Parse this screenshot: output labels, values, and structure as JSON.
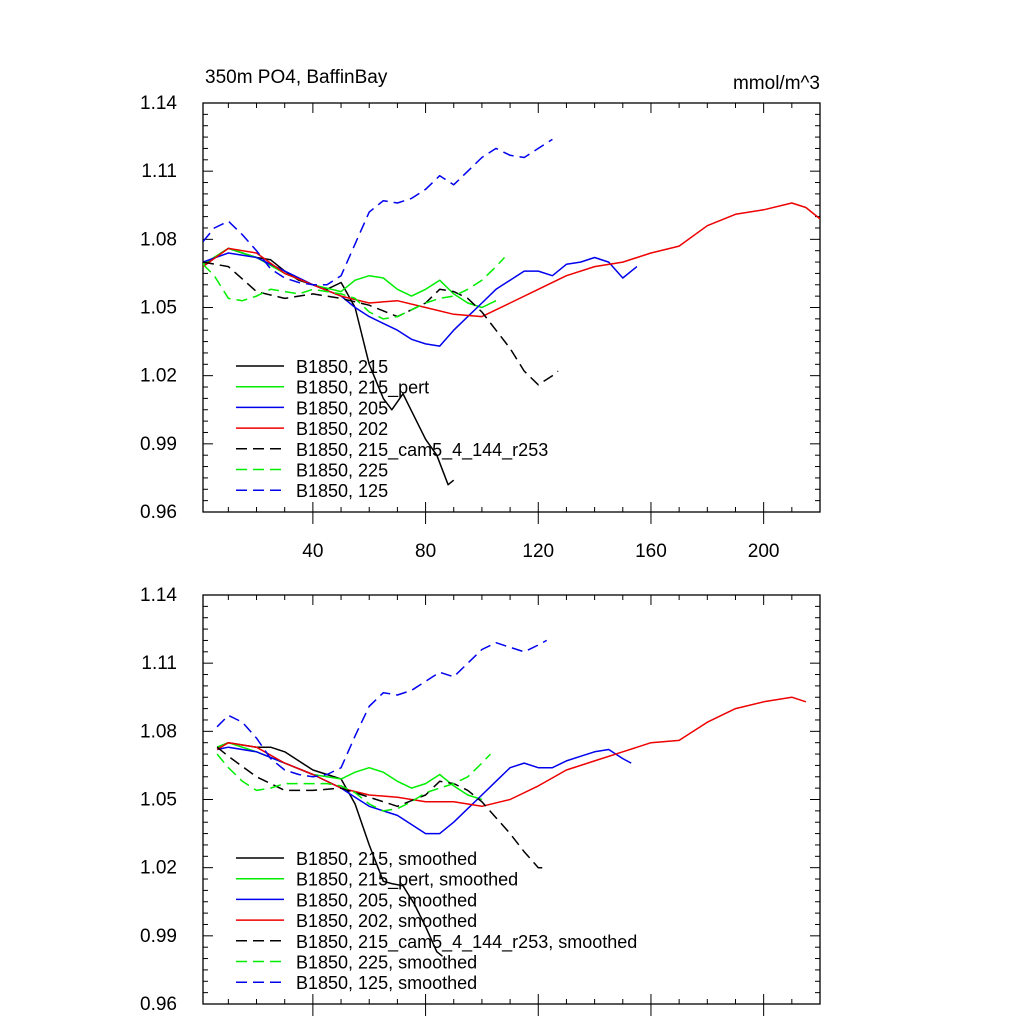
{
  "chart_data": [
    {
      "type": "line",
      "title": "350m PO4, BaffinBay",
      "units": "mmol/m^3",
      "xlim": [
        1,
        220
      ],
      "ylim": [
        0.96,
        1.14
      ],
      "xticks": [
        40,
        80,
        120,
        160,
        200
      ],
      "yticks": [
        0.96,
        0.99,
        1.02,
        1.05,
        1.08,
        1.11,
        1.14
      ],
      "ytick_labels": [
        "0.96",
        "0.99",
        "1.02",
        "1.05",
        "1.08",
        "1.11",
        "1.14"
      ],
      "xtick_labels": [
        "40",
        "80",
        "120",
        "160",
        "200"
      ],
      "legend_position": "bottom-left",
      "series": [
        {
          "name": "B1850, 215",
          "color": "#000000",
          "dashed": false,
          "x": [
            1,
            5,
            10,
            15,
            20,
            25,
            30,
            35,
            40,
            45,
            50,
            55,
            60,
            65,
            68,
            72,
            76,
            80,
            84,
            88,
            90
          ],
          "y": [
            1.068,
            1.072,
            1.076,
            1.074,
            1.072,
            1.071,
            1.066,
            1.062,
            1.06,
            1.058,
            1.061,
            1.05,
            1.025,
            1.01,
            1.005,
            1.012,
            1.002,
            0.992,
            0.985,
            0.972,
            0.974
          ]
        },
        {
          "name": "B1850, 215_pert",
          "color": "#00ee00",
          "dashed": false,
          "x": [
            1,
            10,
            20,
            30,
            40,
            50,
            55,
            60,
            65,
            70,
            75,
            80,
            85,
            90,
            95,
            100,
            105
          ],
          "y": [
            1.069,
            1.076,
            1.072,
            1.065,
            1.06,
            1.057,
            1.062,
            1.064,
            1.063,
            1.058,
            1.055,
            1.058,
            1.062,
            1.056,
            1.052,
            1.05,
            1.053
          ]
        },
        {
          "name": "B1850, 205",
          "color": "#0000ee",
          "dashed": false,
          "x": [
            1,
            10,
            20,
            30,
            40,
            50,
            55,
            60,
            65,
            70,
            75,
            80,
            85,
            90,
            95,
            100,
            105,
            110,
            115,
            120,
            125,
            130,
            135,
            140,
            145,
            150,
            155
          ],
          "y": [
            1.07,
            1.074,
            1.072,
            1.066,
            1.06,
            1.055,
            1.05,
            1.046,
            1.043,
            1.04,
            1.036,
            1.034,
            1.033,
            1.04,
            1.046,
            1.052,
            1.058,
            1.062,
            1.066,
            1.066,
            1.064,
            1.069,
            1.07,
            1.072,
            1.07,
            1.063,
            1.068
          ]
        },
        {
          "name": "B1850, 202",
          "color": "#ee0000",
          "dashed": false,
          "x": [
            1,
            10,
            20,
            30,
            40,
            50,
            60,
            70,
            80,
            90,
            100,
            110,
            120,
            130,
            140,
            150,
            160,
            170,
            180,
            190,
            200,
            210,
            215,
            220
          ],
          "y": [
            1.068,
            1.076,
            1.074,
            1.065,
            1.06,
            1.055,
            1.052,
            1.053,
            1.05,
            1.047,
            1.046,
            1.052,
            1.058,
            1.064,
            1.068,
            1.07,
            1.074,
            1.077,
            1.086,
            1.091,
            1.093,
            1.096,
            1.094,
            1.089
          ]
        },
        {
          "name": "B1850, 215_cam5_4_144_r253",
          "color": "#000000",
          "dashed": true,
          "x": [
            1,
            10,
            20,
            30,
            40,
            50,
            60,
            70,
            80,
            85,
            90,
            95,
            100,
            105,
            110,
            115,
            120,
            125,
            127
          ],
          "y": [
            1.07,
            1.068,
            1.057,
            1.054,
            1.056,
            1.054,
            1.051,
            1.046,
            1.052,
            1.058,
            1.057,
            1.054,
            1.048,
            1.04,
            1.032,
            1.022,
            1.016,
            1.02,
            1.022
          ]
        },
        {
          "name": "B1850, 225",
          "color": "#00ee00",
          "dashed": true,
          "x": [
            1,
            5,
            10,
            15,
            20,
            25,
            30,
            35,
            40,
            45,
            50,
            55,
            60,
            65,
            70,
            75,
            80,
            85,
            90,
            95,
            100,
            105,
            108
          ],
          "y": [
            1.069,
            1.064,
            1.054,
            1.053,
            1.055,
            1.058,
            1.057,
            1.056,
            1.058,
            1.057,
            1.056,
            1.054,
            1.048,
            1.045,
            1.046,
            1.049,
            1.052,
            1.054,
            1.055,
            1.058,
            1.062,
            1.068,
            1.072
          ]
        },
        {
          "name": "B1850, 125",
          "color": "#0000ee",
          "dashed": true,
          "x": [
            1,
            5,
            10,
            15,
            20,
            25,
            30,
            35,
            40,
            45,
            50,
            55,
            60,
            65,
            70,
            75,
            80,
            85,
            90,
            95,
            100,
            105,
            110,
            115,
            120,
            125
          ],
          "y": [
            1.079,
            1.085,
            1.088,
            1.082,
            1.075,
            1.067,
            1.063,
            1.061,
            1.06,
            1.06,
            1.064,
            1.078,
            1.092,
            1.097,
            1.096,
            1.098,
            1.102,
            1.108,
            1.104,
            1.11,
            1.116,
            1.12,
            1.117,
            1.116,
            1.12,
            1.124
          ]
        }
      ]
    },
    {
      "type": "line",
      "title": "",
      "xlim": [
        1,
        220
      ],
      "ylim": [
        0.96,
        1.14
      ],
      "xticks": [
        40,
        80,
        120,
        160,
        200
      ],
      "yticks": [
        0.96,
        0.99,
        1.02,
        1.05,
        1.08,
        1.11,
        1.14
      ],
      "ytick_labels": [
        "0.96",
        "0.99",
        "1.02",
        "1.05",
        "1.08",
        "1.11",
        "1.14"
      ],
      "legend_position": "bottom-left",
      "series": [
        {
          "name": "B1850, 215, smoothed",
          "color": "#000000",
          "dashed": false,
          "x": [
            6,
            10,
            15,
            20,
            25,
            30,
            35,
            40,
            45,
            50,
            55,
            60,
            65,
            68,
            72,
            76,
            80,
            84,
            86
          ],
          "y": [
            1.073,
            1.075,
            1.074,
            1.073,
            1.073,
            1.071,
            1.067,
            1.063,
            1.061,
            1.059,
            1.048,
            1.03,
            1.014,
            1.013,
            1.012,
            1.004,
            0.994,
            0.983,
            0.981
          ]
        },
        {
          "name": "B1850, 215_pert, smoothed",
          "color": "#00ee00",
          "dashed": false,
          "x": [
            6,
            10,
            20,
            30,
            40,
            50,
            55,
            60,
            65,
            70,
            75,
            80,
            85,
            90,
            95,
            100
          ],
          "y": [
            1.073,
            1.075,
            1.071,
            1.066,
            1.061,
            1.059,
            1.062,
            1.064,
            1.062,
            1.058,
            1.055,
            1.057,
            1.061,
            1.056,
            1.052,
            1.05
          ]
        },
        {
          "name": "B1850, 205, smoothed",
          "color": "#0000ee",
          "dashed": false,
          "x": [
            6,
            10,
            20,
            30,
            40,
            50,
            55,
            60,
            65,
            70,
            75,
            80,
            85,
            90,
            95,
            100,
            105,
            110,
            115,
            120,
            125,
            130,
            135,
            140,
            145,
            150,
            153
          ],
          "y": [
            1.072,
            1.073,
            1.071,
            1.066,
            1.061,
            1.055,
            1.051,
            1.047,
            1.045,
            1.043,
            1.039,
            1.035,
            1.035,
            1.04,
            1.046,
            1.052,
            1.058,
            1.064,
            1.066,
            1.064,
            1.064,
            1.067,
            1.069,
            1.071,
            1.072,
            1.068,
            1.066
          ]
        },
        {
          "name": "B1850, 202, smoothed",
          "color": "#ee0000",
          "dashed": false,
          "x": [
            6,
            10,
            20,
            30,
            40,
            50,
            60,
            70,
            80,
            90,
            100,
            110,
            120,
            130,
            140,
            150,
            160,
            170,
            180,
            190,
            200,
            210,
            215
          ],
          "y": [
            1.072,
            1.075,
            1.073,
            1.066,
            1.061,
            1.055,
            1.052,
            1.051,
            1.049,
            1.049,
            1.047,
            1.05,
            1.056,
            1.063,
            1.067,
            1.071,
            1.075,
            1.076,
            1.084,
            1.09,
            1.093,
            1.095,
            1.093
          ]
        },
        {
          "name": "B1850, 215_cam5_4_144_r253, smoothed",
          "color": "#000000",
          "dashed": true,
          "x": [
            6,
            10,
            20,
            30,
            40,
            50,
            60,
            70,
            80,
            85,
            90,
            95,
            100,
            105,
            110,
            115,
            120,
            123
          ],
          "y": [
            1.073,
            1.069,
            1.06,
            1.054,
            1.054,
            1.055,
            1.051,
            1.047,
            1.052,
            1.058,
            1.057,
            1.054,
            1.049,
            1.042,
            1.035,
            1.027,
            1.02,
            1.02
          ]
        },
        {
          "name": "B1850, 225, smoothed",
          "color": "#00ee00",
          "dashed": true,
          "x": [
            6,
            10,
            15,
            20,
            25,
            30,
            35,
            40,
            45,
            50,
            55,
            60,
            65,
            70,
            75,
            80,
            85,
            90,
            95,
            100,
            103
          ],
          "y": [
            1.07,
            1.064,
            1.058,
            1.054,
            1.055,
            1.057,
            1.057,
            1.057,
            1.057,
            1.056,
            1.053,
            1.048,
            1.045,
            1.046,
            1.049,
            1.053,
            1.055,
            1.057,
            1.06,
            1.066,
            1.07
          ]
        },
        {
          "name": "B1850, 125, smoothed",
          "color": "#0000ee",
          "dashed": true,
          "x": [
            6,
            10,
            15,
            20,
            25,
            30,
            35,
            40,
            45,
            50,
            55,
            60,
            65,
            70,
            75,
            80,
            85,
            90,
            95,
            100,
            105,
            110,
            115,
            120,
            123
          ],
          "y": [
            1.082,
            1.087,
            1.084,
            1.077,
            1.068,
            1.063,
            1.061,
            1.06,
            1.061,
            1.064,
            1.078,
            1.091,
            1.097,
            1.096,
            1.098,
            1.102,
            1.106,
            1.104,
            1.11,
            1.116,
            1.119,
            1.117,
            1.115,
            1.118,
            1.12
          ]
        }
      ]
    }
  ]
}
